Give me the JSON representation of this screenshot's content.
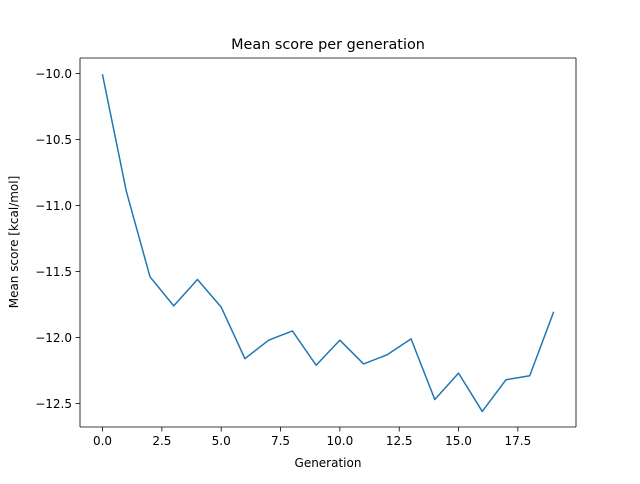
{
  "chart_data": {
    "type": "line",
    "title": "Mean score per generation",
    "xlabel": "Generation",
    "ylabel": "Mean score [kcal/mol]",
    "xlim": [
      -0.95,
      19.95
    ],
    "ylim": [
      -12.678,
      -9.882
    ],
    "xticks": [
      0.0,
      2.5,
      5.0,
      7.5,
      10.0,
      12.5,
      15.0,
      17.5
    ],
    "xtick_labels": [
      "0.0",
      "2.5",
      "5.0",
      "7.5",
      "10.0",
      "12.5",
      "15.0",
      "17.5"
    ],
    "yticks": [
      -10.0,
      -10.5,
      -11.0,
      -11.5,
      -12.0,
      -12.5
    ],
    "ytick_labels": [
      "−10.0",
      "−10.5",
      "−11.0",
      "−11.5",
      "−12.0",
      "−12.5"
    ],
    "grid": false,
    "legend": "none",
    "series": [
      {
        "color": "#1f77b4",
        "x": [
          0,
          1,
          2,
          3,
          4,
          5,
          6,
          7,
          8,
          9,
          10,
          11,
          12,
          13,
          14,
          15,
          16,
          17,
          18,
          19
        ],
        "values": [
          -10.01,
          -10.89,
          -11.54,
          -11.76,
          -11.56,
          -11.77,
          -12.16,
          -12.02,
          -11.95,
          -12.21,
          -12.02,
          -12.2,
          -12.13,
          -12.01,
          -12.47,
          -12.27,
          -12.56,
          -12.32,
          -12.29,
          -11.81
        ]
      }
    ]
  }
}
